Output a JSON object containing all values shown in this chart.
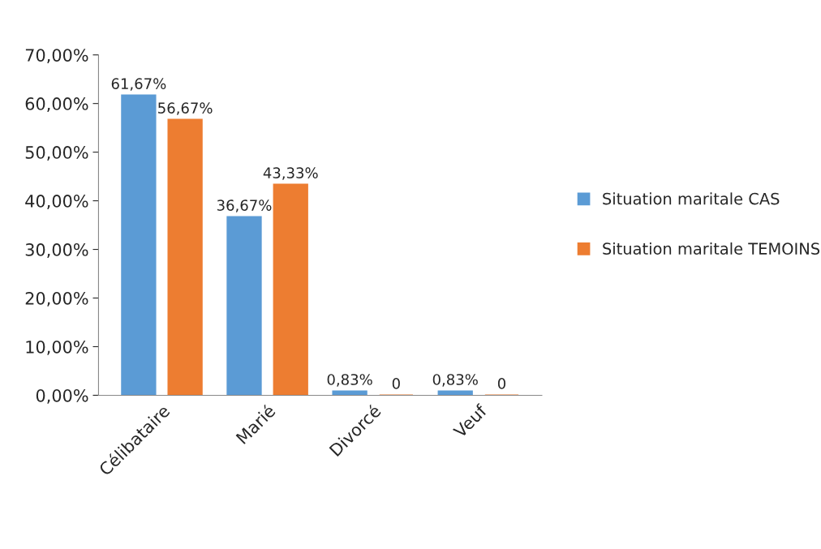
{
  "chart_data": {
    "type": "bar",
    "categories": [
      "Célibataire",
      "Marié",
      "Divorcé",
      "Veuf"
    ],
    "series": [
      {
        "name": "Situation maritale CAS",
        "color": "#5b9bd5",
        "values": [
          61.67,
          36.67,
          0.83,
          0.83
        ],
        "value_labels": [
          "61,67%",
          "36,67%",
          "0,83%",
          "0,83%"
        ]
      },
      {
        "name": "Situation maritale TEMOINS",
        "color": "#ed7d31",
        "values": [
          56.67,
          43.33,
          0,
          0
        ],
        "value_labels": [
          "56,67%",
          "43,33%",
          "0",
          "0"
        ]
      }
    ],
    "ylim": [
      0,
      70
    ],
    "yticks": [
      {
        "value": 0,
        "label": "0,00%"
      },
      {
        "value": 10,
        "label": "10,00%"
      },
      {
        "value": 20,
        "label": "20,00%"
      },
      {
        "value": 30,
        "label": "30,00%"
      },
      {
        "value": 40,
        "label": "40,00%"
      },
      {
        "value": 50,
        "label": "50,00%"
      },
      {
        "value": 60,
        "label": "60,00%"
      },
      {
        "value": 70,
        "label": "70,00%"
      }
    ],
    "legend": "right",
    "grid": false
  }
}
